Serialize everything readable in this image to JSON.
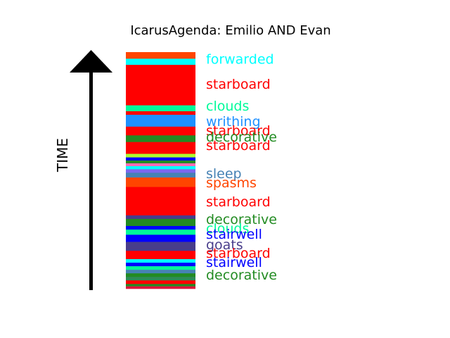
{
  "chart_data": {
    "type": "bar",
    "title": "IcarusAgenda: Emilio AND Evan",
    "ylabel": "TIME",
    "bar_segments": [
      {
        "start": 0.0,
        "end": 0.028,
        "color": "#ff4500"
      },
      {
        "start": 0.028,
        "end": 0.054,
        "color": "#00ffff"
      },
      {
        "start": 0.054,
        "end": 0.225,
        "color": "#ff0000"
      },
      {
        "start": 0.225,
        "end": 0.25,
        "color": "#00fa9a"
      },
      {
        "start": 0.25,
        "end": 0.265,
        "color": "#ff0000"
      },
      {
        "start": 0.265,
        "end": 0.315,
        "color": "#1e90ff"
      },
      {
        "start": 0.315,
        "end": 0.352,
        "color": "#ff0000"
      },
      {
        "start": 0.352,
        "end": 0.38,
        "color": "#228b22"
      },
      {
        "start": 0.38,
        "end": 0.43,
        "color": "#ff0000"
      },
      {
        "start": 0.43,
        "end": 0.445,
        "color": "#adff2f"
      },
      {
        "start": 0.445,
        "end": 0.458,
        "color": "#0000ff"
      },
      {
        "start": 0.458,
        "end": 0.47,
        "color": "#228b22"
      },
      {
        "start": 0.47,
        "end": 0.482,
        "color": "#ff69b4"
      },
      {
        "start": 0.482,
        "end": 0.495,
        "color": "#00ffff"
      },
      {
        "start": 0.495,
        "end": 0.51,
        "color": "#7b68ee"
      },
      {
        "start": 0.51,
        "end": 0.53,
        "color": "#4682b4"
      },
      {
        "start": 0.53,
        "end": 0.57,
        "color": "#ff4500"
      },
      {
        "start": 0.57,
        "end": 0.69,
        "color": "#ff0000"
      },
      {
        "start": 0.69,
        "end": 0.705,
        "color": "#483d8b"
      },
      {
        "start": 0.705,
        "end": 0.735,
        "color": "#228b22"
      },
      {
        "start": 0.735,
        "end": 0.75,
        "color": "#0000ff"
      },
      {
        "start": 0.75,
        "end": 0.772,
        "color": "#00fa9a"
      },
      {
        "start": 0.772,
        "end": 0.802,
        "color": "#0000ff"
      },
      {
        "start": 0.802,
        "end": 0.84,
        "color": "#483d8b"
      },
      {
        "start": 0.84,
        "end": 0.875,
        "color": "#ff0000"
      },
      {
        "start": 0.875,
        "end": 0.89,
        "color": "#00ffff"
      },
      {
        "start": 0.89,
        "end": 0.905,
        "color": "#0000ff"
      },
      {
        "start": 0.905,
        "end": 0.92,
        "color": "#00fa9a"
      },
      {
        "start": 0.92,
        "end": 0.935,
        "color": "#4682b4"
      },
      {
        "start": 0.935,
        "end": 0.95,
        "color": "#228b22"
      },
      {
        "start": 0.95,
        "end": 0.965,
        "color": "#2e8b57"
      },
      {
        "start": 0.965,
        "end": 0.98,
        "color": "#ff0000"
      },
      {
        "start": 0.98,
        "end": 0.99,
        "color": "#228b22"
      },
      {
        "start": 0.99,
        "end": 1.0,
        "color": "#dc143c"
      }
    ],
    "labels": [
      {
        "text": "forwarded",
        "pos": 0.028,
        "color": "#00ffff"
      },
      {
        "text": "starboard",
        "pos": 0.134,
        "color": "#ff0000"
      },
      {
        "text": "clouds",
        "pos": 0.226,
        "color": "#00fa9a"
      },
      {
        "text": "writhing",
        "pos": 0.292,
        "color": "#1e90ff"
      },
      {
        "text": "starboard",
        "pos": 0.33,
        "color": "#ff0000"
      },
      {
        "text": "decorative",
        "pos": 0.357,
        "color": "#228b22"
      },
      {
        "text": "starboard",
        "pos": 0.393,
        "color": "#ff0000"
      },
      {
        "text": "sleep",
        "pos": 0.512,
        "color": "#4682b4"
      },
      {
        "text": "spasms",
        "pos": 0.551,
        "color": "#ff4500"
      },
      {
        "text": "starboard",
        "pos": 0.631,
        "color": "#ff0000"
      },
      {
        "text": "decorative",
        "pos": 0.705,
        "color": "#228b22"
      },
      {
        "text": "clouds",
        "pos": 0.744,
        "color": "#00fa9a"
      },
      {
        "text": "stairwell",
        "pos": 0.768,
        "color": "#0000ff"
      },
      {
        "text": "goats",
        "pos": 0.812,
        "color": "#483d8b"
      },
      {
        "text": "starboard",
        "pos": 0.848,
        "color": "#ff0000"
      },
      {
        "text": "stairwell",
        "pos": 0.887,
        "color": "#0000ff"
      },
      {
        "text": "decorative",
        "pos": 0.94,
        "color": "#228b22"
      }
    ]
  }
}
